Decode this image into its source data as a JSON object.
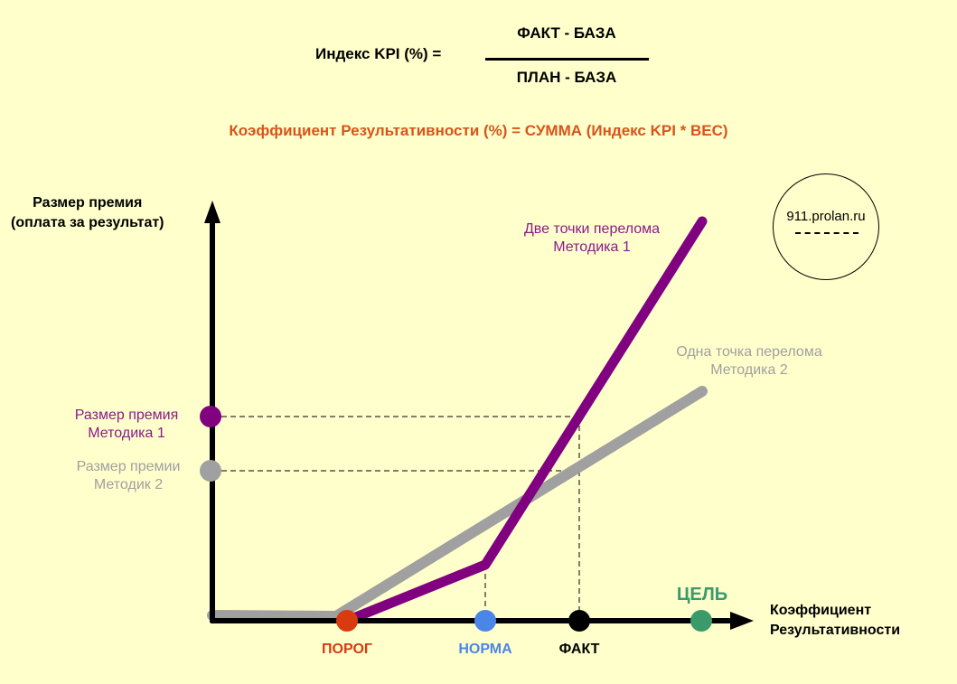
{
  "formula": {
    "label": "Индекс KPI (%) =",
    "numerator": "ФАКТ - БАЗА",
    "denominator": "ПЛАН - БАЗА"
  },
  "coefficient_formula": "Коэффициент Результативности  (%) = СУММА  (Индекс KPI * ВЕС)",
  "axes": {
    "y_label_line1": "Размер премия",
    "y_label_line2": "(оплата за результат)",
    "x_label_line1": "Коэффициент",
    "x_label_line2": "Результативности"
  },
  "badge": {
    "text": "911.prolan.ru"
  },
  "series": {
    "method1_line1": "Две точки перелома",
    "method1_line2": "Методика 1",
    "method2_line1": "Одна точка перелома",
    "method2_line2": "Методика 2"
  },
  "y_markers": {
    "m1_line1": "Размер премия",
    "m1_line2": "Методика 1",
    "m2_line1": "Размер премии",
    "m2_line2": "Методик 2"
  },
  "x_markers": {
    "threshold": "ПОРОГ",
    "norm": "НОРМА",
    "fact": "ФАКТ",
    "goal": "ЦЕЛЬ"
  },
  "colors": {
    "background": "#ffffcc",
    "method1": "#800080",
    "method2": "#a0a0a0",
    "threshold": "#d93a10",
    "norm": "#4a86e8",
    "fact": "#000000",
    "goal": "#3a9a6a",
    "formula_accent": "#d9541a"
  }
}
